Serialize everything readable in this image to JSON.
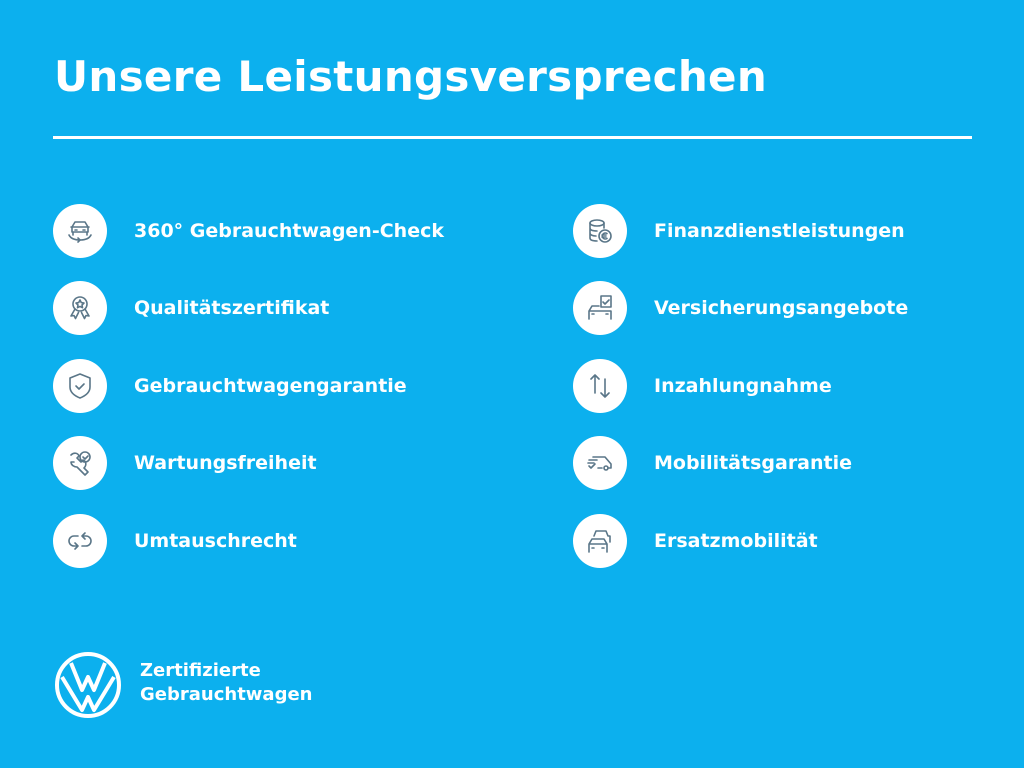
{
  "title": "Unsere Leistungsversprechen",
  "colors": {
    "background": "#0cb0ee",
    "icon": "#5a7688",
    "text": "#ffffff"
  },
  "left_items": [
    {
      "label": "360° Gebrauchtwagen-Check",
      "icon": "car-360-icon"
    },
    {
      "label": "Qualitätszertifikat",
      "icon": "certificate-badge-icon"
    },
    {
      "label": "Gebrauchtwagengarantie",
      "icon": "shield-check-icon"
    },
    {
      "label": "Wartungsfreiheit",
      "icon": "wrench-check-icon"
    },
    {
      "label": "Umtauschrecht",
      "icon": "exchange-arrows-icon"
    }
  ],
  "right_items": [
    {
      "label": "Finanzdienstleistungen",
      "icon": "coins-euro-icon"
    },
    {
      "label": "Versicherungsangebote",
      "icon": "car-document-icon"
    },
    {
      "label": "Inzahlungnahme",
      "icon": "up-down-arrows-icon"
    },
    {
      "label": "Mobilitätsgarantie",
      "icon": "van-check-icon"
    },
    {
      "label": "Ersatzmobilität",
      "icon": "two-cars-icon"
    }
  ],
  "brand": {
    "line1": "Zertifizierte",
    "line2": "Gebrauchtwagen",
    "logo": "vw-logo"
  }
}
